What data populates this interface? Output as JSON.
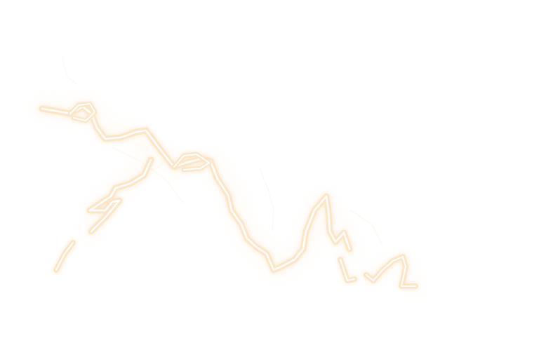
{
  "image": {
    "subject": "lightning-streak-icon",
    "background_color": "#ffffff",
    "glow_color": "#fde6c8",
    "core_color": "#ffffff",
    "halo_color": "#fff4e8"
  }
}
